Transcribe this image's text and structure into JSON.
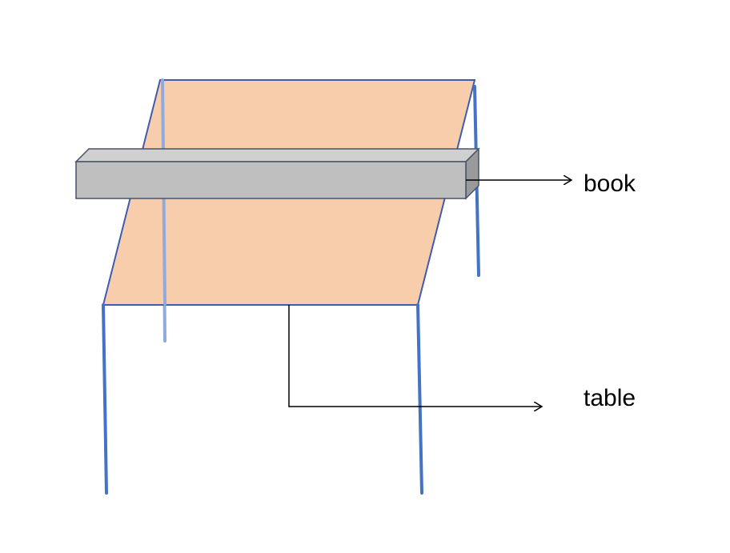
{
  "labels": {
    "book": "book",
    "table": "table"
  },
  "colors": {
    "tabletop_fill": "#F8CDAC",
    "tabletop_stroke": "#3F5BB0",
    "leg_front": "#4472C4",
    "leg_back": "#8FAADC",
    "book_front": "#BFBFBF",
    "book_top": "#D0D0D0",
    "book_side": "#9A9A9A",
    "book_stroke": "#44546A",
    "arrow": "#000000"
  }
}
